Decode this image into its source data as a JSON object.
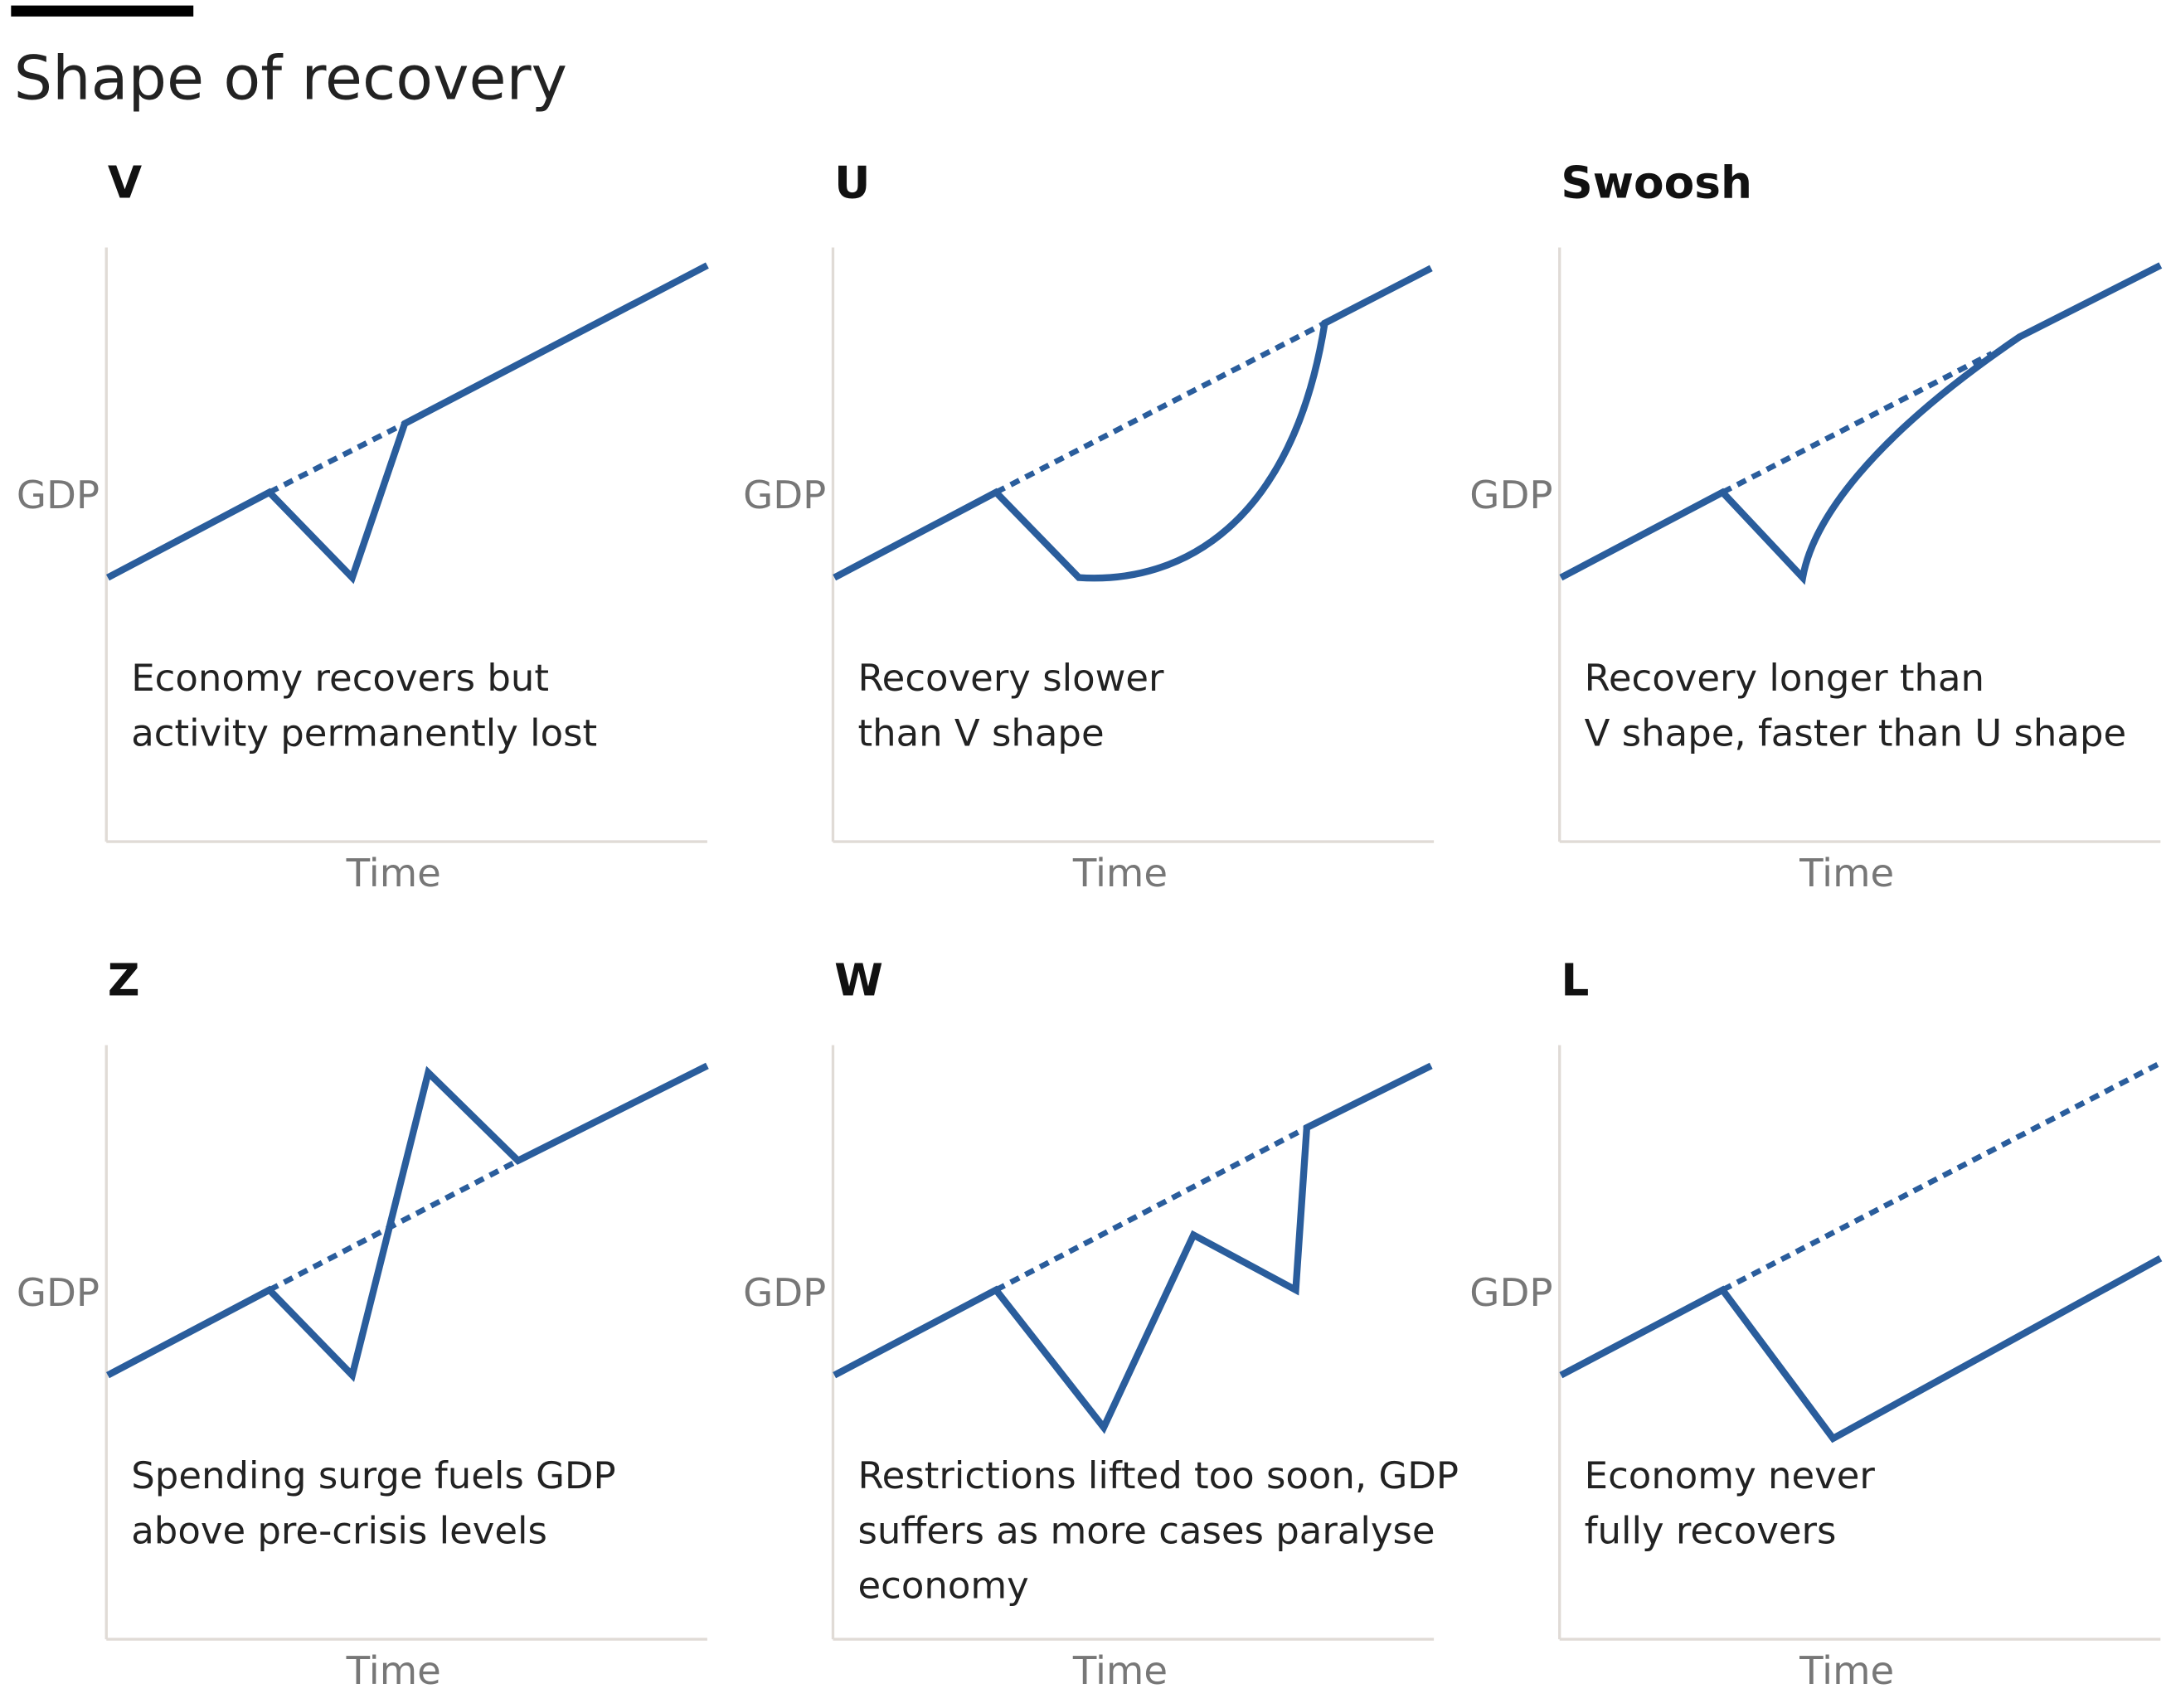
{
  "header": {
    "title": "Shape of recovery"
  },
  "panels": [
    {
      "title": "V",
      "description": [
        "Economy recovers but",
        "activity permanently lost"
      ],
      "y_label": "GDP",
      "x_label": "Time"
    },
    {
      "title": "U",
      "description": [
        "Recovery slower",
        "than V shape"
      ],
      "y_label": "GDP",
      "x_label": "Time"
    },
    {
      "title": "Swoosh",
      "description": [
        "Recovery longer than",
        "V shape, faster than U shape"
      ],
      "y_label": "GDP",
      "x_label": "Time"
    },
    {
      "title": "Z",
      "description": [
        "Spending surge fuels GDP",
        "above pre-crisis levels"
      ],
      "y_label": "GDP",
      "x_label": "Time"
    },
    {
      "title": "W",
      "description": [
        "Restrictions lifted too soon, GDP",
        "suffers as more cases paralyse",
        "economy"
      ],
      "y_label": "GDP",
      "x_label": "Time"
    },
    {
      "title": "L",
      "description": [
        "Economy never",
        "fully recovers"
      ],
      "y_label": "GDP",
      "x_label": "Time"
    }
  ]
}
